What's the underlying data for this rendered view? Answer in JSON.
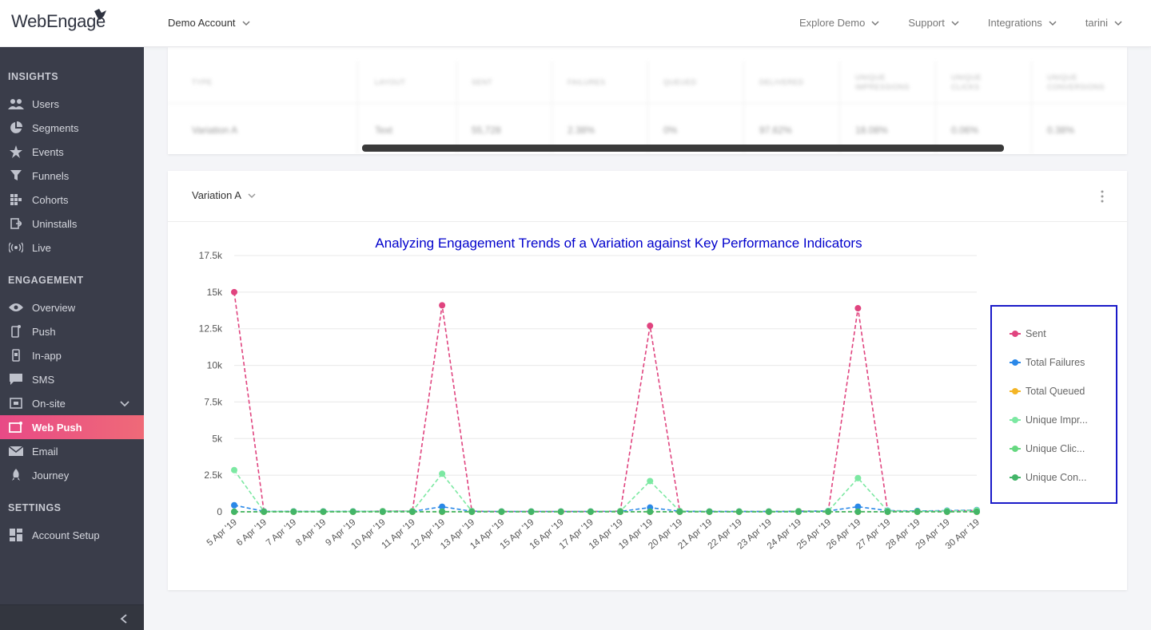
{
  "header": {
    "logo_text": "WebEngage",
    "account_label": "Demo Account",
    "nav": [
      {
        "label": "Explore Demo"
      },
      {
        "label": "Support"
      },
      {
        "label": "Integrations"
      },
      {
        "label": "tarini"
      }
    ]
  },
  "sidebar": {
    "sections": [
      {
        "title": "INSIGHTS"
      },
      {
        "title": "ENGAGEMENT"
      },
      {
        "title": "SETTINGS"
      }
    ],
    "items": [
      {
        "label": "Users",
        "icon": "users-icon"
      },
      {
        "label": "Segments",
        "icon": "pie-icon"
      },
      {
        "label": "Events",
        "icon": "star-icon"
      },
      {
        "label": "Funnels",
        "icon": "funnel-icon"
      },
      {
        "label": "Cohorts",
        "icon": "grid-icon"
      },
      {
        "label": "Uninstalls",
        "icon": "exit-icon"
      },
      {
        "label": "Live",
        "icon": "broadcast-icon"
      },
      {
        "label": "Overview",
        "icon": "eye-icon"
      },
      {
        "label": "Push",
        "icon": "phone-icon"
      },
      {
        "label": "In-app",
        "icon": "inapp-icon"
      },
      {
        "label": "SMS",
        "icon": "chat-icon"
      },
      {
        "label": "On-site",
        "icon": "onsite-icon"
      },
      {
        "label": "Web Push",
        "icon": "webpush-icon",
        "active": true
      },
      {
        "label": "Email",
        "icon": "mail-icon"
      },
      {
        "label": "Journey",
        "icon": "rocket-icon"
      },
      {
        "label": "Account Setup",
        "icon": "dashboard-icon"
      }
    ]
  },
  "table": {
    "headers": [
      "TYPE",
      "LAYOUT",
      "SENT",
      "FAILURES",
      "QUEUED",
      "DELIVERED",
      "UNIQUE IMPRESSIONS",
      "UNIQUE CLICKS",
      "UNIQUE CONVERSIONS"
    ],
    "row": [
      "Variation A",
      "Text",
      "55,728",
      "2.38%",
      "0%",
      "97.62%",
      "18.08%",
      "0.06%",
      "0.38%"
    ]
  },
  "card": {
    "variation_label": "Variation A"
  },
  "colors": {
    "accent": "#e84a86",
    "sidebar_bg": "#3a3d4a",
    "chart_title": "#0000cc",
    "legend_border": "#1a1ac8"
  },
  "chart_data": {
    "type": "line",
    "title": "Analyzing Engagement Trends of a Variation against Key Performance Indicators",
    "xlabel": "",
    "ylabel": "",
    "ylim": [
      0,
      17500
    ],
    "yticks": [
      0,
      2500,
      5000,
      7500,
      10000,
      12500,
      15000,
      17500
    ],
    "ytick_labels": [
      "0",
      "2.5k",
      "5k",
      "7.5k",
      "10k",
      "12.5k",
      "15k",
      "17.5k"
    ],
    "categories": [
      "5 Apr '19",
      "6 Apr '19",
      "7 Apr '19",
      "8 Apr '19",
      "9 Apr '19",
      "10 Apr '19",
      "11 Apr '19",
      "12 Apr '19",
      "13 Apr '19",
      "14 Apr '19",
      "15 Apr '19",
      "16 Apr '19",
      "17 Apr '19",
      "18 Apr '19",
      "19 Apr '19",
      "20 Apr '19",
      "21 Apr '19",
      "22 Apr '19",
      "23 Apr '19",
      "24 Apr '19",
      "25 Apr '19",
      "26 Apr '19",
      "27 Apr '19",
      "28 Apr '19",
      "29 Apr '19",
      "30 Apr '19"
    ],
    "grid": "horizontal",
    "legend_position": "right",
    "series": [
      {
        "name": "Sent",
        "color": "#e0447f",
        "values": [
          15000,
          20,
          20,
          20,
          20,
          50,
          50,
          14100,
          50,
          20,
          20,
          20,
          20,
          50,
          12700,
          50,
          20,
          20,
          20,
          50,
          50,
          13900,
          60,
          30,
          60,
          100
        ]
      },
      {
        "name": "Total Failures",
        "color": "#2a88e8",
        "values": [
          450,
          30,
          30,
          30,
          30,
          30,
          30,
          350,
          40,
          20,
          20,
          20,
          20,
          30,
          290,
          40,
          20,
          20,
          20,
          20,
          60,
          350,
          80,
          60,
          80,
          120
        ]
      },
      {
        "name": "Total Queued",
        "color": "#f4b525",
        "values": [
          0,
          0,
          0,
          0,
          0,
          0,
          0,
          0,
          0,
          0,
          0,
          0,
          0,
          0,
          0,
          0,
          0,
          0,
          0,
          0,
          0,
          0,
          0,
          0,
          0,
          0
        ]
      },
      {
        "name": "Unique Impr...",
        "color": "#7ce8a2",
        "values": [
          2850,
          20,
          20,
          20,
          20,
          50,
          50,
          2600,
          50,
          20,
          20,
          20,
          20,
          50,
          2100,
          50,
          20,
          20,
          20,
          50,
          50,
          2300,
          60,
          30,
          60,
          100
        ]
      },
      {
        "name": "Unique Clic...",
        "color": "#66d880",
        "values": [
          10,
          10,
          10,
          10,
          10,
          10,
          10,
          20,
          10,
          10,
          10,
          10,
          10,
          10,
          15,
          10,
          10,
          10,
          10,
          10,
          10,
          15,
          10,
          10,
          10,
          10
        ]
      },
      {
        "name": "Unique Con...",
        "color": "#43b568",
        "values": [
          5,
          5,
          5,
          5,
          5,
          5,
          5,
          8,
          5,
          5,
          5,
          5,
          5,
          5,
          7,
          5,
          5,
          5,
          5,
          5,
          5,
          7,
          5,
          5,
          5,
          5
        ]
      }
    ]
  }
}
